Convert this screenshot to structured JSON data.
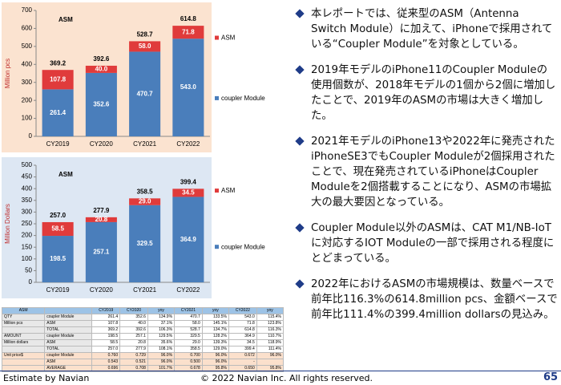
{
  "chart_data": [
    {
      "type": "bar",
      "stacked": true,
      "title": "ASM",
      "ylabel": "Million pcs",
      "background": "#fbe3d0",
      "categories": [
        "CY2019",
        "CY2020",
        "CY2021",
        "CY2022"
      ],
      "series": [
        {
          "name": "coupler Module",
          "color": "#4a7ebb",
          "values": [
            261.4,
            352.6,
            470.7,
            543.0
          ],
          "value_labels": [
            "261.4",
            "352.6",
            "470.7",
            "543.0"
          ]
        },
        {
          "name": "ASM",
          "color": "#e03b3b",
          "values": [
            107.8,
            40.0,
            58.0,
            71.8
          ],
          "value_labels": [
            "107.8",
            "40.0",
            "58.0",
            "71.8"
          ]
        }
      ],
      "totals": [
        369.2,
        392.6,
        528.7,
        614.8
      ],
      "total_labels": [
        "369.2",
        "392.6",
        "528.7",
        "614.8"
      ],
      "ylim": [
        0,
        700
      ],
      "yticks": [
        0,
        100,
        200,
        300,
        400,
        500,
        600,
        700
      ],
      "grid": false
    },
    {
      "type": "bar",
      "stacked": true,
      "title": "ASM",
      "ylabel": "Million Dollars",
      "background": "#dde7f3",
      "categories": [
        "CY2019",
        "CY2020",
        "CY2021",
        "CY2022"
      ],
      "series": [
        {
          "name": "coupler Module",
          "color": "#4a7ebb",
          "values": [
            198.5,
            257.1,
            329.5,
            364.9
          ],
          "value_labels": [
            "198.5",
            "257.1",
            "329.5",
            "364.9"
          ]
        },
        {
          "name": "ASM",
          "color": "#e03b3b",
          "values": [
            58.5,
            20.8,
            29.0,
            34.5
          ],
          "value_labels": [
            "58.5",
            "20.8",
            "29.0",
            "34.5"
          ]
        }
      ],
      "totals": [
        257.0,
        277.9,
        358.5,
        399.4
      ],
      "total_labels": [
        "257.0",
        "277.9",
        "358.5",
        "399.4"
      ],
      "ylim": [
        0,
        500
      ],
      "yticks": [
        0,
        50,
        100,
        150,
        200,
        250,
        300,
        350,
        400,
        450,
        500
      ],
      "grid": false
    }
  ],
  "table": {
    "rows": [
      [
        "ASM",
        null,
        "CY2019",
        "CY2020",
        "yoy",
        "CY2021",
        "yoy",
        "CY2022",
        "yoy"
      ],
      [
        "QTY",
        "coupler Module",
        "261.4",
        "352.6",
        "134.9%",
        "470.7",
        "133.5%",
        "543.0",
        "115.4%"
      ],
      [
        "Million pcs",
        "ASM",
        "107.8",
        "40.0",
        "37.1%",
        "58.0",
        "145.1%",
        "71.8",
        "123.8%"
      ],
      [
        null,
        "TOTAL",
        "369.2",
        "392.6",
        "106.3%",
        "528.7",
        "134.7%",
        "614.8",
        "116.3%"
      ],
      [
        "AMOUNT",
        "coupler Module",
        "198.5",
        "257.1",
        "129.5%",
        "329.5",
        "128.2%",
        "364.9",
        "110.7%"
      ],
      [
        "Million dollars",
        "ASM",
        "58.5",
        "20.8",
        "35.6%",
        "29.0",
        "139.3%",
        "34.5",
        "118.9%"
      ],
      [
        null,
        "TOTAL",
        "257.0",
        "277.9",
        "108.1%",
        "358.5",
        "129.0%",
        "399.4",
        "111.4%"
      ],
      [
        "Unit price$",
        "coupler Module",
        "0.760",
        "0.729",
        "96.0%",
        "0.700",
        "96.0%",
        "0.672",
        "96.0%"
      ],
      [
        null,
        "ASM",
        "0.543",
        "0.521",
        "96.0%",
        "0.500",
        "96.0%",
        "-",
        null
      ],
      [
        null,
        "AVERAGE",
        "0.696",
        "0.708",
        "101.7%",
        "0.678",
        "95.8%",
        "0.650",
        "95.8%"
      ]
    ]
  },
  "bullets": [
    "本レポートでは、従来型のASM（Antenna Switch Module）に加えて、iPhoneで採用されている“Coupler Module”を対象としている。",
    "2019年モデルのiPhone11のCoupler Moduleの使用個数が、2018年モデルの1個から2個に増加したことで、2019年のASMの市場は大きく増加した。",
    "2021年モデルのiPhone13や2022年に発売されたiPhoneSE3でもCoupler Moduleが2個採用されたことで、現在発売されているiPhoneはCoupler Moduleを2個搭載することになり、ASMの市場拡大の最大要因となっている。",
    "Coupler Module以外のASMは、CAT M1/NB-IoTに対応するIOT Moduleの一部で採用される程度にとどまっている。",
    "2022年におけるASMの市場規模は、数量ベースで前年比116.3%の614.8million pcs、金額ベースで前年比111.4%の399.4million dollarsの見込み。"
  ],
  "footer": {
    "left": "Estimate by Navian",
    "center": "© 2022 Navian Inc. All rights reserved.",
    "page": "65"
  }
}
